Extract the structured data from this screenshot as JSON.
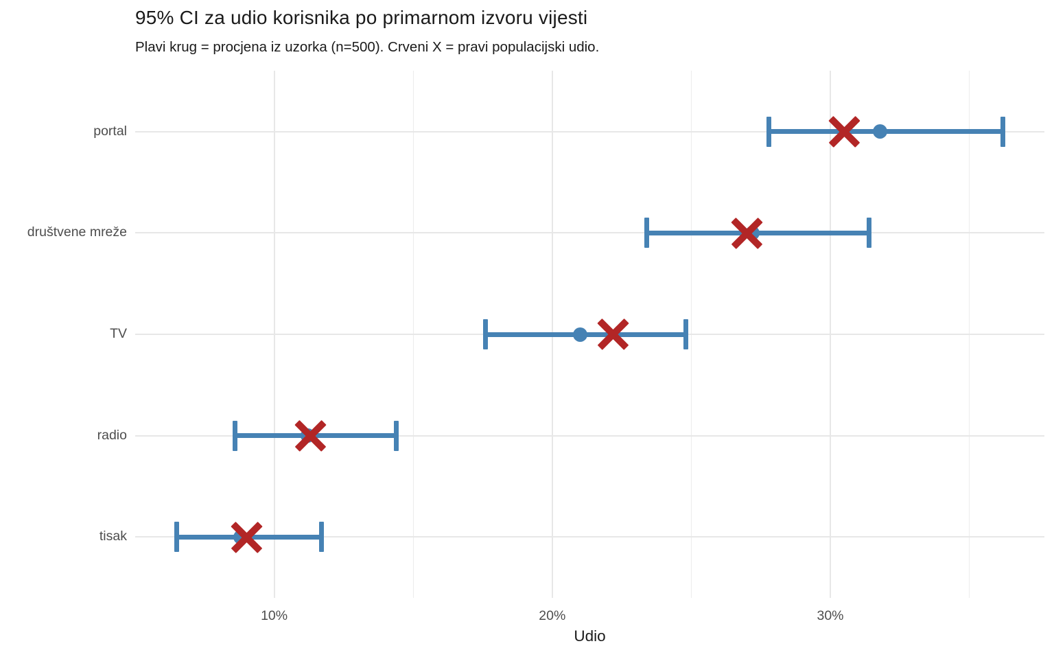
{
  "chart_data": {
    "type": "errorbar",
    "title": "95% CI za udio korisnika po primarnom izvoru vijesti",
    "subtitle": "Plavi krug = procjena iz uzorka (n=500). Crveni X = pravi populacijski udio.",
    "xlabel": "Udio",
    "ylabel": "",
    "sample_size_note": "n=500",
    "xlim": [
      5.0,
      37.7
    ],
    "x_ticks": [
      {
        "value": 10,
        "label": "10%"
      },
      {
        "value": 20,
        "label": "20%"
      },
      {
        "value": 30,
        "label": "30%"
      }
    ],
    "x_minor_ticks": [
      15,
      25,
      35
    ],
    "grid": true,
    "legend_position": "none",
    "categories_top_to_bottom": [
      "portal",
      "društvene mreže",
      "TV",
      "radio",
      "tisak"
    ],
    "series": [
      {
        "category": "portal",
        "estimate_pct": 31.8,
        "ci_low_pct": 27.8,
        "ci_high_pct": 36.2,
        "true_pct": 30.5
      },
      {
        "category": "društvene mreže",
        "estimate_pct": 27.2,
        "ci_low_pct": 23.4,
        "ci_high_pct": 31.4,
        "true_pct": 27.0
      },
      {
        "category": "TV",
        "estimate_pct": 21.0,
        "ci_low_pct": 17.6,
        "ci_high_pct": 24.8,
        "true_pct": 22.2
      },
      {
        "category": "radio",
        "estimate_pct": 11.2,
        "ci_low_pct": 8.6,
        "ci_high_pct": 14.4,
        "true_pct": 11.3
      },
      {
        "category": "tisak",
        "estimate_pct": 8.8,
        "ci_low_pct": 6.5,
        "ci_high_pct": 11.7,
        "true_pct": 9.0
      }
    ],
    "colors": {
      "estimate_blue": "#4682B4",
      "true_red": "#B22626",
      "grid_major": "#e7e7e7",
      "grid_minor": "#ececec",
      "axis_text": "#4d4d4d",
      "title_text": "#1a1a1a"
    }
  }
}
